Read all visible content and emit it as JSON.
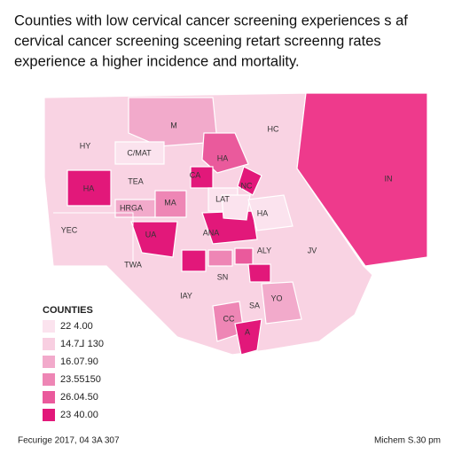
{
  "title": [
    "Counties with low cervical cancer screening experiences s af",
    "cervical cancer screening sceening retart screenng rates",
    "experience a higher incidence and mortality."
  ],
  "regions": [
    {
      "label": "M"
    },
    {
      "label": "HC"
    },
    {
      "label": "HY"
    },
    {
      "label": "C/MAT"
    },
    {
      "label": "CA"
    },
    {
      "label": "HA"
    },
    {
      "label": "IN"
    },
    {
      "label": "HA"
    },
    {
      "label": "TEA"
    },
    {
      "label": "NC"
    },
    {
      "label": "HRGA"
    },
    {
      "label": "MA"
    },
    {
      "label": "LAT"
    },
    {
      "label": "HA"
    },
    {
      "label": "YEC"
    },
    {
      "label": "UA"
    },
    {
      "label": "ANA"
    },
    {
      "label": "ALY"
    },
    {
      "label": "JV"
    },
    {
      "label": "TWA"
    },
    {
      "label": "SN"
    },
    {
      "label": "YO"
    },
    {
      "label": "IAY"
    },
    {
      "label": "SA"
    },
    {
      "label": "CC"
    },
    {
      "label": "A"
    }
  ],
  "legend": {
    "title": "COUNTIES",
    "items": [
      {
        "label": "22 4.00",
        "color": "#fbe3ee"
      },
      {
        "label": "14.7⅃ 130",
        "color": "#f8cfe1"
      },
      {
        "label": "16.07.90",
        "color": "#f2aacb"
      },
      {
        "label": "23.55150",
        "color": "#ee86b5"
      },
      {
        "label": "26.04.50",
        "color": "#ea5a9c"
      },
      {
        "label": "23 40.00",
        "color": "#e2187a"
      }
    ]
  },
  "footer": {
    "left": "Fecurige 2017, 04 3A 307",
    "right": "Michem S.30 pm"
  }
}
